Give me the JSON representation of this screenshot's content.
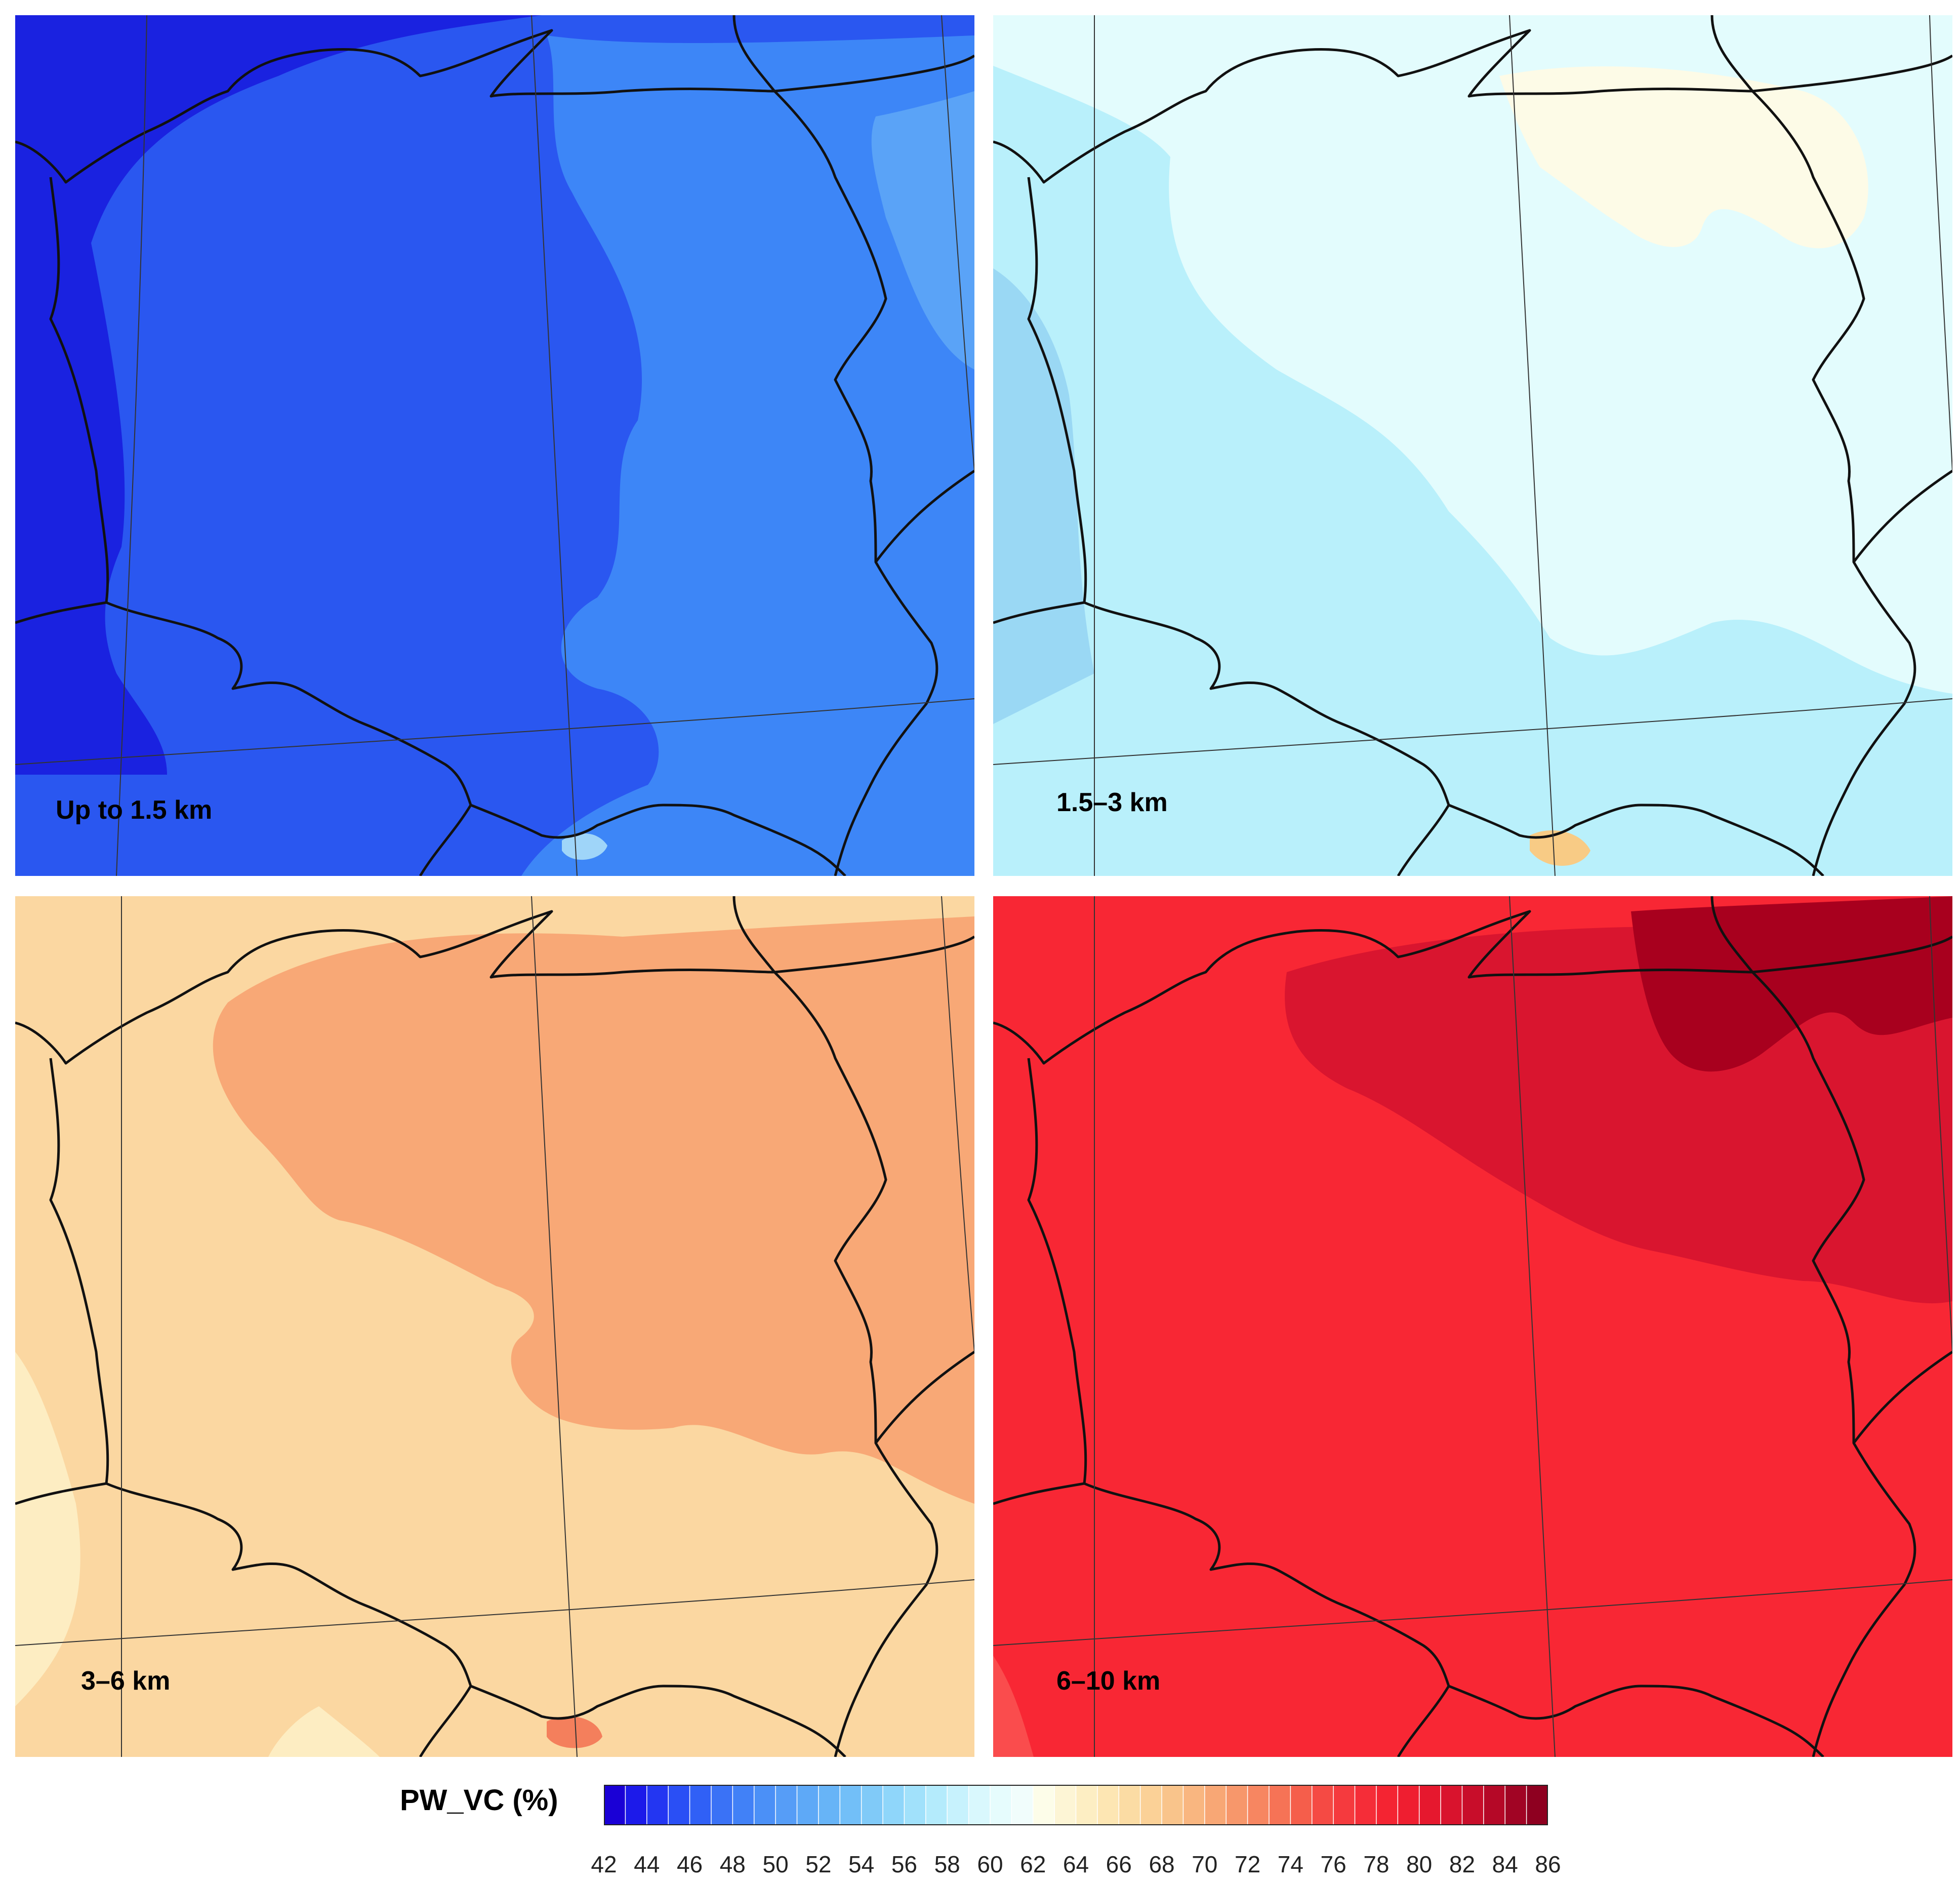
{
  "panels": [
    {
      "id": "p1",
      "label": "Up to 1.5 km",
      "base": "#2a57f0",
      "zones": [
        "#1a22e0",
        "#3d86f7",
        "#5aa3f7",
        "#9fd5f9"
      ]
    },
    {
      "id": "p2",
      "label": "1.5–3 km",
      "base": "#e3fcfd",
      "zones": [
        "#b9f0fb",
        "#9ad8f4",
        "#fdfbe7",
        "#f8cb85"
      ]
    },
    {
      "id": "p3",
      "label": "3–6 km",
      "base": "#fbd7a1",
      "zones": [
        "#f8a876",
        "#fdedc2",
        "#f47f5c"
      ]
    },
    {
      "id": "p4",
      "label": "6–10 km",
      "base": "#f82734",
      "zones": [
        "#d9152f",
        "#a8001e",
        "#fa4c4d"
      ]
    }
  ],
  "legend": {
    "title": "PW_VC (%)",
    "ticks": [
      "42",
      "44",
      "46",
      "48",
      "50",
      "52",
      "54",
      "56",
      "58",
      "60",
      "62",
      "64",
      "66",
      "68",
      "70",
      "72",
      "74",
      "76",
      "78",
      "80",
      "82",
      "84",
      "86"
    ],
    "colors": [
      "#1a00d6",
      "#1c1aea",
      "#2336f2",
      "#2a4ff5",
      "#3060f6",
      "#3a72f6",
      "#4181f7",
      "#4b90f7",
      "#569df7",
      "#5ea9f7",
      "#67b4f7",
      "#72bff8",
      "#80caf8",
      "#8fd6fa",
      "#a1e1fb",
      "#b4ebfc",
      "#c7f2fd",
      "#d9f8fd",
      "#e6fcfd",
      "#f1fdfc",
      "#fdfde9",
      "#fdf5d5",
      "#fdeec3",
      "#fde6b3",
      "#fbdca4",
      "#fbd197",
      "#f9c48b",
      "#f9b680",
      "#f8a775",
      "#f7976b",
      "#f78661",
      "#f67356",
      "#f55e4b",
      "#f54a44",
      "#f53a3e",
      "#f52d38",
      "#f42432",
      "#ef1e30",
      "#e6182e",
      "#d9132d",
      "#c80d2a",
      "#b50827",
      "#a10424",
      "#8e0020"
    ]
  }
}
